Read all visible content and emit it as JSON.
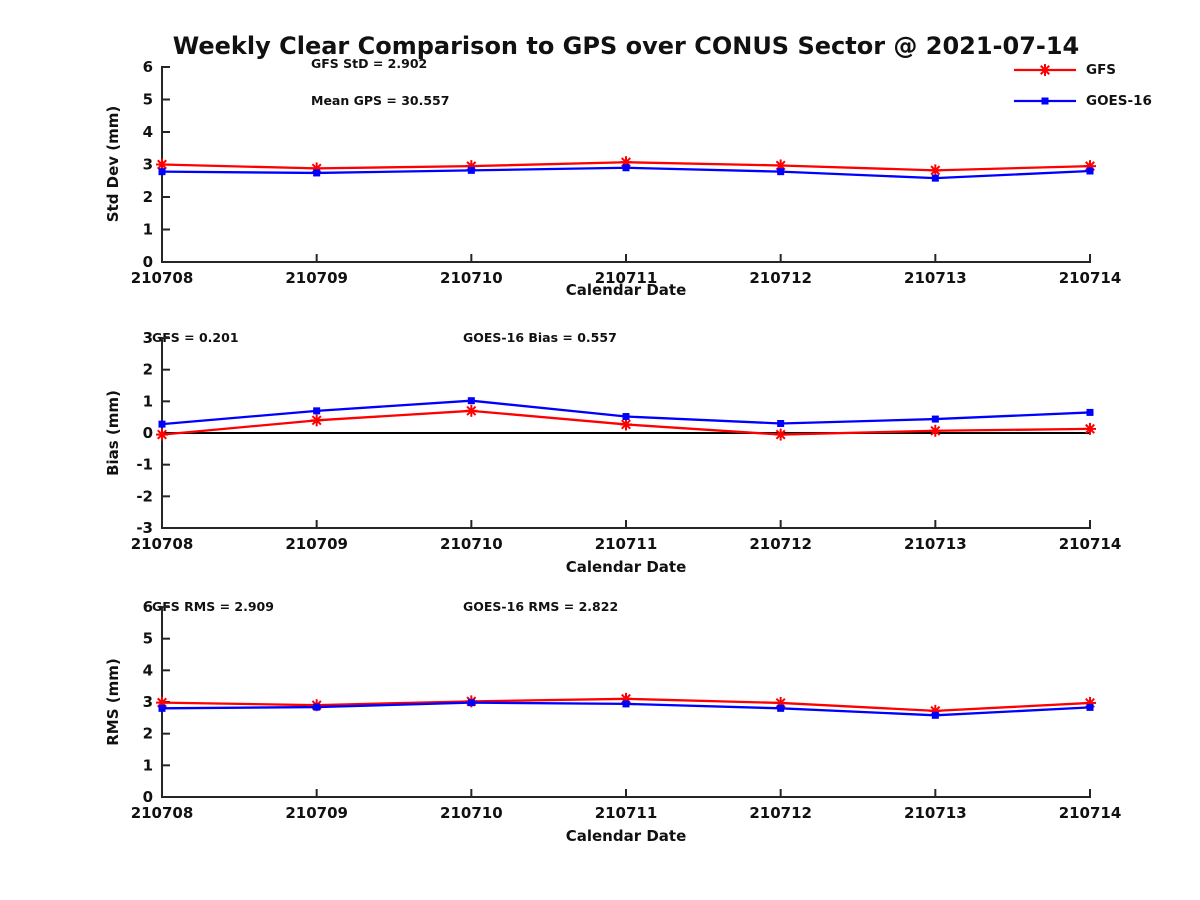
{
  "title": "Weekly Clear Comparison to GPS over CONUS Sector @ 2021-07-14",
  "colors": {
    "gfs": "#ff0000",
    "goes16": "#0000ff",
    "axis": "#262626",
    "text": "#111111",
    "zero_line": "#000000",
    "background": "#ffffff"
  },
  "legend": [
    {
      "label": "GFS",
      "color": "#ff0000",
      "marker": "star"
    },
    {
      "label": "GOES-16",
      "color": "#0000ff",
      "marker": "square"
    }
  ],
  "chart_data": [
    {
      "type": "line",
      "title": "",
      "ylabel": "Std Dev (mm)",
      "xlabel": "Calendar Date",
      "categories": [
        "210708",
        "210709",
        "210710",
        "210711",
        "210712",
        "210713",
        "210714"
      ],
      "ylim": [
        0,
        6
      ],
      "yticks": [
        0,
        1,
        2,
        3,
        4,
        5,
        6
      ],
      "grid": false,
      "zero_line": false,
      "legend_position": "top-right-outside",
      "annotations": [
        {
          "text": "GFS StD = 2.902"
        },
        {
          "text": "Mean GPS = 30.557"
        }
      ],
      "series": [
        {
          "name": "GFS",
          "color": "#ff0000",
          "marker": "star",
          "values": [
            3.0,
            2.88,
            2.95,
            3.07,
            2.97,
            2.82,
            2.95
          ]
        },
        {
          "name": "GOES-16",
          "color": "#0000ff",
          "marker": "square",
          "values": [
            2.78,
            2.74,
            2.82,
            2.9,
            2.78,
            2.58,
            2.8
          ]
        }
      ]
    },
    {
      "type": "line",
      "title": "",
      "ylabel": "Bias (mm)",
      "xlabel": "Calendar Date",
      "categories": [
        "210708",
        "210709",
        "210710",
        "210711",
        "210712",
        "210713",
        "210714"
      ],
      "ylim": [
        -3,
        3
      ],
      "yticks": [
        -3,
        -2,
        -1,
        0,
        1,
        2,
        3
      ],
      "grid": false,
      "zero_line": true,
      "annotations": [
        {
          "text": "GFS = 0.201"
        },
        {
          "text": "GOES-16 Bias  = 0.557"
        }
      ],
      "series": [
        {
          "name": "GFS",
          "color": "#ff0000",
          "marker": "star",
          "values": [
            -0.05,
            0.4,
            0.7,
            0.27,
            -0.05,
            0.07,
            0.13
          ]
        },
        {
          "name": "GOES-16",
          "color": "#0000ff",
          "marker": "square",
          "values": [
            0.28,
            0.7,
            1.02,
            0.52,
            0.3,
            0.44,
            0.65
          ]
        }
      ]
    },
    {
      "type": "line",
      "title": "",
      "ylabel": "RMS (mm)",
      "xlabel": "Calendar Date",
      "categories": [
        "210708",
        "210709",
        "210710",
        "210711",
        "210712",
        "210713",
        "210714"
      ],
      "ylim": [
        0,
        6
      ],
      "yticks": [
        0,
        1,
        2,
        3,
        4,
        5,
        6
      ],
      "grid": false,
      "zero_line": false,
      "annotations": [
        {
          "text": "GFS RMS = 2.909"
        },
        {
          "text": "GOES-16 RMS = 2.822"
        }
      ],
      "series": [
        {
          "name": "GFS",
          "color": "#ff0000",
          "marker": "star",
          "values": [
            2.98,
            2.9,
            3.02,
            3.1,
            2.97,
            2.72,
            2.97
          ]
        },
        {
          "name": "GOES-16",
          "color": "#0000ff",
          "marker": "square",
          "values": [
            2.8,
            2.84,
            2.98,
            2.94,
            2.8,
            2.58,
            2.83
          ]
        }
      ]
    }
  ]
}
